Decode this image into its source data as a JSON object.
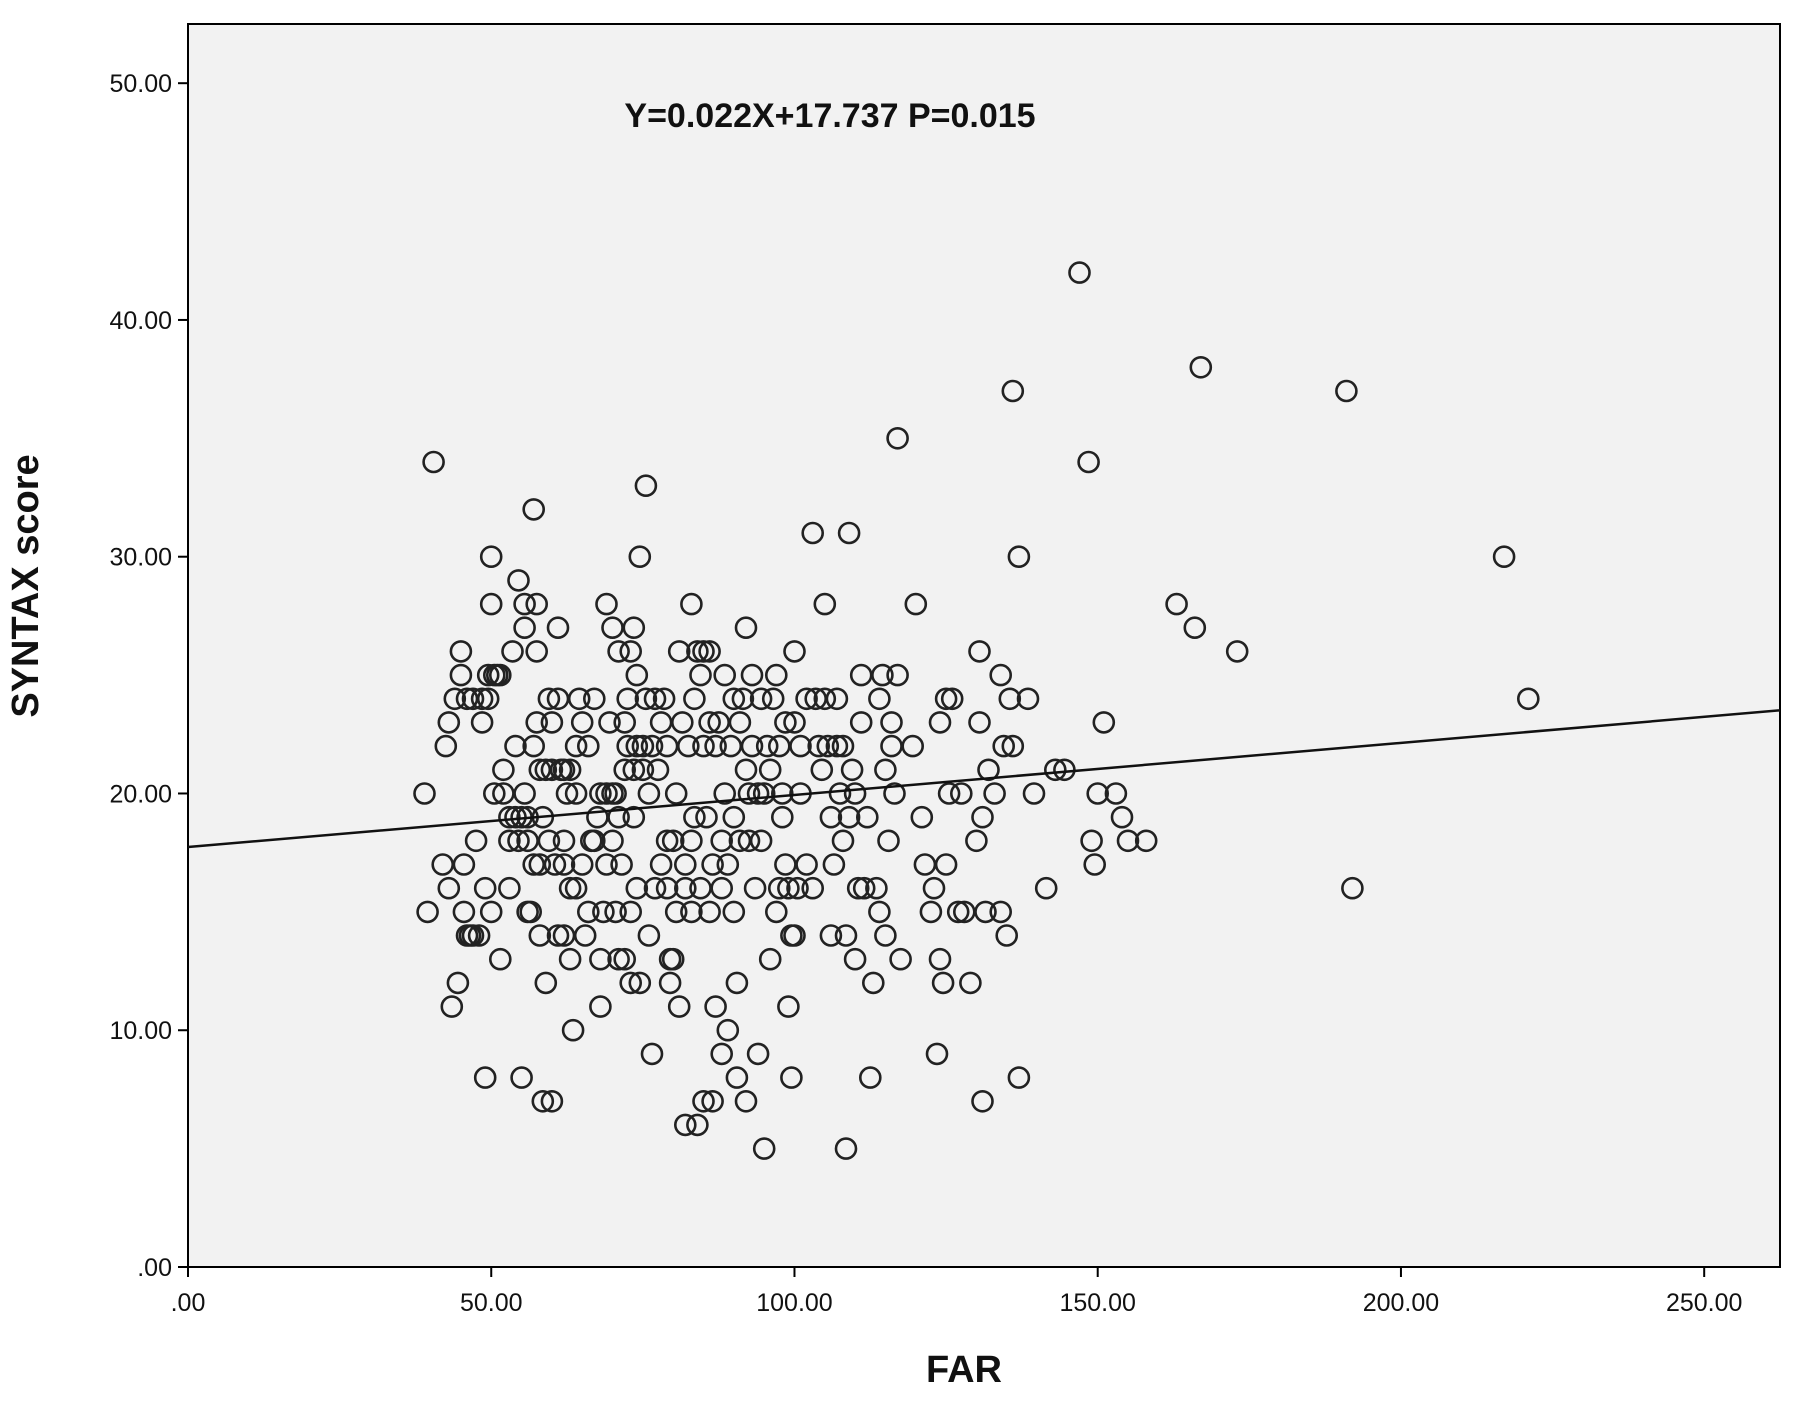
{
  "chart_data": {
    "type": "scatter",
    "title": "",
    "annotation": "Y=0.022X+17.737 P=0.015",
    "xlabel": "FAR",
    "ylabel": "SYNTAX score",
    "xlim": [
      0,
      262.5
    ],
    "ylim": [
      0,
      52.5
    ],
    "x_ticks": [
      ".00",
      "50.00",
      "100.00",
      "150.00",
      "200.00",
      "250.00"
    ],
    "y_ticks": [
      ".00",
      "10.00",
      "20.00",
      "30.00",
      "40.00",
      "50.00"
    ],
    "x_tick_values": [
      0,
      50,
      100,
      150,
      200,
      250
    ],
    "y_tick_values": [
      0,
      10,
      20,
      30,
      40,
      50
    ],
    "grid": false,
    "fit_line": {
      "slope": 0.022,
      "intercept": 17.737
    },
    "colors": {
      "plot_background": "#f2f2f2",
      "marker_stroke": "#222222",
      "line": "#111111"
    },
    "points": [
      [
        39,
        20
      ],
      [
        39.5,
        15
      ],
      [
        40.5,
        34
      ],
      [
        42,
        17
      ],
      [
        42.5,
        22
      ],
      [
        43,
        16
      ],
      [
        43.5,
        11
      ],
      [
        43,
        23
      ],
      [
        44,
        24
      ],
      [
        44.5,
        12
      ],
      [
        45,
        26
      ],
      [
        45,
        25
      ],
      [
        45.5,
        15
      ],
      [
        45.5,
        17
      ],
      [
        46,
        24
      ],
      [
        46,
        14
      ],
      [
        46.5,
        14
      ],
      [
        47,
        14
      ],
      [
        47,
        24
      ],
      [
        47.5,
        18
      ],
      [
        48,
        14
      ],
      [
        48.5,
        24
      ],
      [
        48.5,
        23
      ],
      [
        49,
        16
      ],
      [
        49,
        8
      ],
      [
        49.5,
        24
      ],
      [
        49.5,
        25
      ],
      [
        50,
        15
      ],
      [
        50,
        28
      ],
      [
        50,
        30
      ],
      [
        50.5,
        20
      ],
      [
        50.5,
        25
      ],
      [
        51,
        25
      ],
      [
        51.5,
        13
      ],
      [
        51.5,
        25
      ],
      [
        52,
        21
      ],
      [
        52,
        20
      ],
      [
        53,
        16
      ],
      [
        53,
        19
      ],
      [
        53,
        18
      ],
      [
        53.5,
        26
      ],
      [
        54,
        22
      ],
      [
        54,
        19
      ],
      [
        54.5,
        29
      ],
      [
        54.5,
        18
      ],
      [
        55,
        19
      ],
      [
        55,
        8
      ],
      [
        55.5,
        27
      ],
      [
        55.5,
        28
      ],
      [
        55.5,
        20
      ],
      [
        56,
        18
      ],
      [
        56,
        15
      ],
      [
        56,
        19
      ],
      [
        56.5,
        15
      ],
      [
        57,
        22
      ],
      [
        57,
        17
      ],
      [
        57.5,
        23
      ],
      [
        57.5,
        26
      ],
      [
        57,
        32
      ],
      [
        57.5,
        28
      ],
      [
        58,
        14
      ],
      [
        58,
        17
      ],
      [
        58,
        21
      ],
      [
        58.5,
        7
      ],
      [
        58.5,
        19
      ],
      [
        59,
        12
      ],
      [
        59,
        21
      ],
      [
        59.5,
        24
      ],
      [
        59.5,
        18
      ],
      [
        60,
        21
      ],
      [
        60,
        7
      ],
      [
        60.5,
        17
      ],
      [
        60,
        23
      ],
      [
        61,
        27
      ],
      [
        61,
        24
      ],
      [
        61,
        14
      ],
      [
        61.5,
        21
      ],
      [
        62,
        17
      ],
      [
        62,
        21
      ],
      [
        62,
        14
      ],
      [
        62.5,
        20
      ],
      [
        62,
        18
      ],
      [
        63,
        13
      ],
      [
        63,
        21
      ],
      [
        63,
        16
      ],
      [
        63.5,
        10
      ],
      [
        64,
        22
      ],
      [
        64,
        20
      ],
      [
        64,
        16
      ],
      [
        64.5,
        24
      ],
      [
        65,
        23
      ],
      [
        65,
        17
      ],
      [
        65.5,
        14
      ],
      [
        66,
        15
      ],
      [
        66,
        22
      ],
      [
        66.5,
        18
      ],
      [
        67,
        18
      ],
      [
        67,
        24
      ],
      [
        67.5,
        19
      ],
      [
        68,
        11
      ],
      [
        68,
        20
      ],
      [
        68,
        13
      ],
      [
        68.5,
        15
      ],
      [
        69,
        20
      ],
      [
        69,
        17
      ],
      [
        69,
        28
      ],
      [
        69.5,
        23
      ],
      [
        70,
        20
      ],
      [
        70,
        18
      ],
      [
        70,
        27
      ],
      [
        70.5,
        20
      ],
      [
        70.5,
        15
      ],
      [
        71,
        19
      ],
      [
        71,
        26
      ],
      [
        71,
        13
      ],
      [
        71.5,
        17
      ],
      [
        72,
        23
      ],
      [
        72,
        21
      ],
      [
        72,
        13
      ],
      [
        72.5,
        22
      ],
      [
        72.5,
        24
      ],
      [
        73,
        12
      ],
      [
        73,
        26
      ],
      [
        73,
        15
      ],
      [
        73.5,
        21
      ],
      [
        73.5,
        19
      ],
      [
        73.5,
        27
      ],
      [
        74,
        16
      ],
      [
        74,
        22
      ],
      [
        74,
        25
      ],
      [
        74.5,
        30
      ],
      [
        74.5,
        12
      ],
      [
        75,
        21
      ],
      [
        75,
        22
      ],
      [
        75.5,
        33
      ],
      [
        75.5,
        24
      ],
      [
        76,
        20
      ],
      [
        76,
        14
      ],
      [
        76.5,
        22
      ],
      [
        76.5,
        9
      ],
      [
        77,
        16
      ],
      [
        77,
        24
      ],
      [
        77.5,
        21
      ],
      [
        78,
        23
      ],
      [
        78,
        17
      ],
      [
        78.5,
        24
      ],
      [
        79,
        18
      ],
      [
        79,
        16
      ],
      [
        79,
        22
      ],
      [
        79.5,
        12
      ],
      [
        79.5,
        13
      ],
      [
        80,
        18
      ],
      [
        80,
        13
      ],
      [
        80.5,
        20
      ],
      [
        80.5,
        15
      ],
      [
        81,
        26
      ],
      [
        81,
        11
      ],
      [
        81.5,
        23
      ],
      [
        82,
        17
      ],
      [
        82,
        16
      ],
      [
        82,
        6
      ],
      [
        82.5,
        22
      ],
      [
        83,
        18
      ],
      [
        83,
        15
      ],
      [
        83,
        28
      ],
      [
        83.5,
        24
      ],
      [
        83.5,
        19
      ],
      [
        84,
        26
      ],
      [
        84,
        6
      ],
      [
        84.5,
        25
      ],
      [
        84.5,
        16
      ],
      [
        85,
        26
      ],
      [
        85,
        22
      ],
      [
        85,
        7
      ],
      [
        85.5,
        19
      ],
      [
        86,
        26
      ],
      [
        86,
        23
      ],
      [
        86,
        15
      ],
      [
        86.5,
        17
      ],
      [
        86.5,
        7
      ],
      [
        87,
        22
      ],
      [
        87,
        11
      ],
      [
        87.5,
        23
      ],
      [
        88,
        18
      ],
      [
        88,
        16
      ],
      [
        88,
        9
      ],
      [
        88.5,
        20
      ],
      [
        88.5,
        25
      ],
      [
        89,
        17
      ],
      [
        89,
        10
      ],
      [
        89.5,
        22
      ],
      [
        90,
        24
      ],
      [
        90,
        19
      ],
      [
        90,
        15
      ],
      [
        90.5,
        12
      ],
      [
        90.5,
        8
      ],
      [
        91,
        23
      ],
      [
        91,
        18
      ],
      [
        91.5,
        24
      ],
      [
        92,
        27
      ],
      [
        92,
        21
      ],
      [
        92,
        7
      ],
      [
        92.5,
        18
      ],
      [
        92.5,
        20
      ],
      [
        93,
        22
      ],
      [
        93,
        25
      ],
      [
        93.5,
        16
      ],
      [
        94,
        20
      ],
      [
        94,
        9
      ],
      [
        94.5,
        24
      ],
      [
        94.5,
        18
      ],
      [
        95,
        20
      ],
      [
        95,
        5
      ],
      [
        95.5,
        22
      ],
      [
        96,
        13
      ],
      [
        96,
        21
      ],
      [
        96.5,
        24
      ],
      [
        97,
        25
      ],
      [
        97,
        15
      ],
      [
        97.5,
        22
      ],
      [
        97.5,
        16
      ],
      [
        98,
        20
      ],
      [
        98,
        19
      ],
      [
        98.5,
        17
      ],
      [
        98.5,
        23
      ],
      [
        99,
        16
      ],
      [
        99,
        11
      ],
      [
        99.5,
        14
      ],
      [
        99.5,
        8
      ],
      [
        100,
        26
      ],
      [
        100,
        23
      ],
      [
        100,
        14
      ],
      [
        100.5,
        16
      ],
      [
        101,
        20
      ],
      [
        101,
        22
      ],
      [
        102,
        24
      ],
      [
        102,
        17
      ],
      [
        103,
        31
      ],
      [
        103,
        16
      ],
      [
        103.5,
        24
      ],
      [
        104,
        22
      ],
      [
        104.5,
        21
      ],
      [
        105,
        28
      ],
      [
        105,
        24
      ],
      [
        105.5,
        22
      ],
      [
        106,
        19
      ],
      [
        106,
        14
      ],
      [
        106.5,
        17
      ],
      [
        107,
        22
      ],
      [
        107,
        24
      ],
      [
        107.5,
        20
      ],
      [
        108,
        18
      ],
      [
        108,
        22
      ],
      [
        108.5,
        14
      ],
      [
        108.5,
        5
      ],
      [
        109,
        31
      ],
      [
        109,
        19
      ],
      [
        109.5,
        21
      ],
      [
        110,
        20
      ],
      [
        110,
        13
      ],
      [
        110.5,
        16
      ],
      [
        111,
        25
      ],
      [
        111,
        23
      ],
      [
        111.5,
        16
      ],
      [
        112,
        19
      ],
      [
        112.5,
        8
      ],
      [
        113,
        12
      ],
      [
        113.5,
        16
      ],
      [
        114,
        24
      ],
      [
        114,
        15
      ],
      [
        114.5,
        25
      ],
      [
        115,
        14
      ],
      [
        115,
        21
      ],
      [
        115.5,
        18
      ],
      [
        116,
        22
      ],
      [
        116,
        23
      ],
      [
        116.5,
        20
      ],
      [
        117,
        25
      ],
      [
        117,
        35
      ],
      [
        117.5,
        13
      ],
      [
        119.5,
        22
      ],
      [
        120,
        28
      ],
      [
        121,
        19
      ],
      [
        121.5,
        17
      ],
      [
        122.5,
        15
      ],
      [
        123,
        16
      ],
      [
        123.5,
        9
      ],
      [
        124,
        13
      ],
      [
        124,
        23
      ],
      [
        124.5,
        12
      ],
      [
        125,
        17
      ],
      [
        125,
        24
      ],
      [
        125.5,
        20
      ],
      [
        126,
        24
      ],
      [
        127,
        15
      ],
      [
        127.5,
        20
      ],
      [
        128,
        15
      ],
      [
        129,
        12
      ],
      [
        130,
        18
      ],
      [
        130.5,
        23
      ],
      [
        130.5,
        26
      ],
      [
        131,
        19
      ],
      [
        131,
        7
      ],
      [
        131.5,
        15
      ],
      [
        132,
        21
      ],
      [
        133,
        20
      ],
      [
        134,
        15
      ],
      [
        134,
        25
      ],
      [
        134.5,
        22
      ],
      [
        135,
        14
      ],
      [
        135.5,
        24
      ],
      [
        136,
        37
      ],
      [
        136,
        22
      ],
      [
        137,
        30
      ],
      [
        137,
        8
      ],
      [
        138.5,
        24
      ],
      [
        139.5,
        20
      ],
      [
        141.5,
        16
      ],
      [
        143,
        21
      ],
      [
        144.5,
        21
      ],
      [
        147,
        42
      ],
      [
        148.5,
        34
      ],
      [
        149,
        18
      ],
      [
        149.5,
        17
      ],
      [
        150,
        20
      ],
      [
        151,
        23
      ],
      [
        153,
        20
      ],
      [
        154,
        19
      ],
      [
        155,
        18
      ],
      [
        158,
        18
      ],
      [
        163,
        28
      ],
      [
        166,
        27
      ],
      [
        167,
        38
      ],
      [
        173,
        26
      ],
      [
        191,
        37
      ],
      [
        192,
        16
      ],
      [
        217,
        30
      ],
      [
        221,
        24
      ]
    ]
  }
}
